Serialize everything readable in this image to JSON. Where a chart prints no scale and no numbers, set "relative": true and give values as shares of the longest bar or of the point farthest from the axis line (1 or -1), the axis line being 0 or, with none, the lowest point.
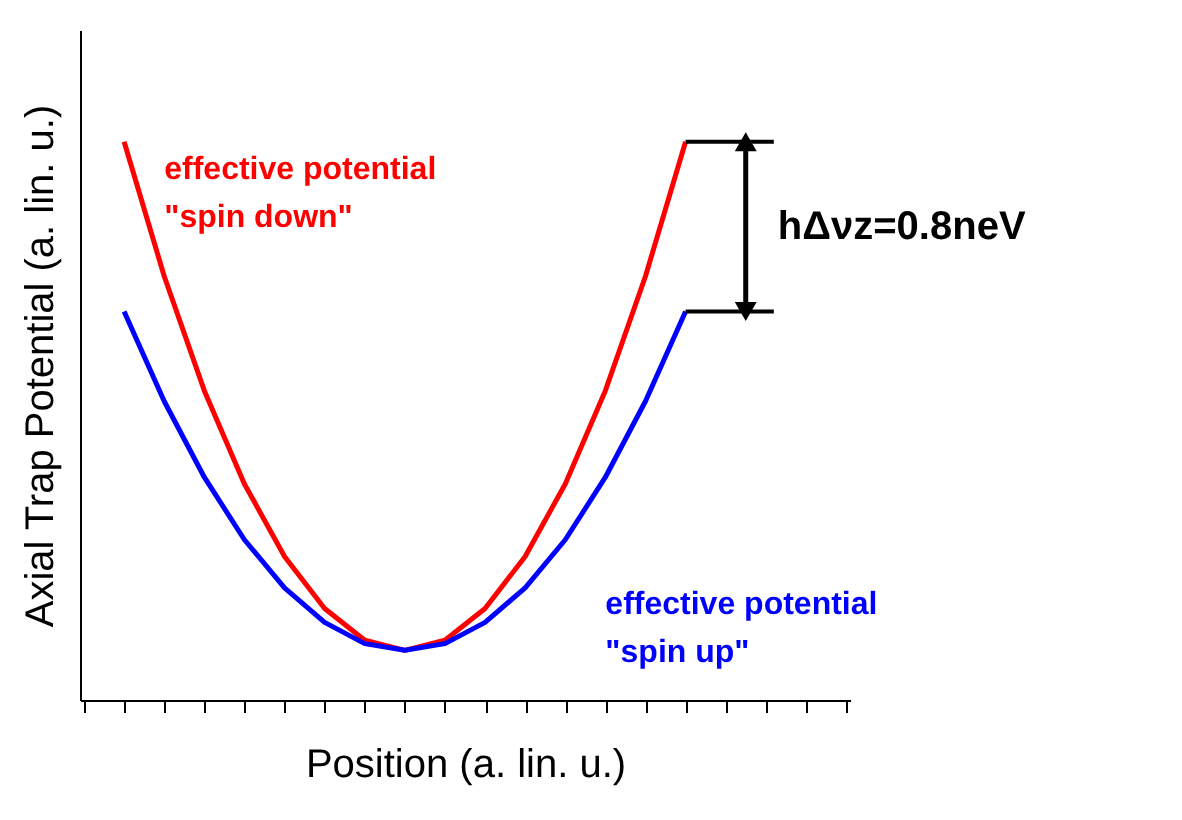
{
  "chart_data": {
    "type": "line",
    "relative": true,
    "xlabel": "Position (a. lin. u.)",
    "ylabel": "Axial Trap Potential (a. lin. u.)",
    "categories": [
      null,
      null,
      null,
      null,
      null,
      null,
      null,
      null,
      null,
      null,
      null,
      null,
      null,
      null,
      null,
      null,
      null,
      null,
      null,
      null
    ],
    "series": [
      {
        "name": "effective potential\n\"spin down\"",
        "color": "#ff0000",
        "values": [
          null,
          1.0,
          0.759,
          0.554,
          0.387,
          0.257,
          0.164,
          0.107,
          0.089,
          0.107,
          0.164,
          0.257,
          0.387,
          0.554,
          0.759,
          1.0,
          null,
          null,
          null,
          null
        ]
      },
      {
        "name": "effective potential\n\"spin up\"",
        "color": "#0000ff",
        "values": [
          null,
          0.696,
          0.535,
          0.399,
          0.287,
          0.201,
          0.139,
          0.101,
          0.089,
          0.101,
          0.139,
          0.201,
          0.287,
          0.399,
          0.535,
          0.696,
          null,
          null,
          null,
          null
        ]
      }
    ],
    "annotations": [
      "hΔνz=0.8neV"
    ],
    "ref_lines": [
      {
        "axis": "y",
        "value": 1.0,
        "color": "#000000"
      },
      {
        "axis": "y",
        "value": 0.696,
        "color": "#000000"
      }
    ],
    "legend": false,
    "grid": false,
    "marker": "none",
    "line_style": "solid"
  }
}
